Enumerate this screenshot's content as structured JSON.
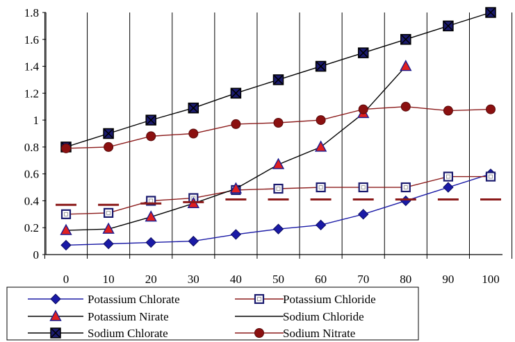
{
  "chart_data": {
    "type": "line",
    "x": [
      0,
      10,
      20,
      30,
      40,
      50,
      60,
      70,
      80,
      90,
      100
    ],
    "ylim": [
      0,
      1.8
    ],
    "yticks": [
      0,
      0.2,
      0.4,
      0.6,
      0.8,
      1,
      1.2,
      1.4,
      1.6,
      1.8
    ],
    "ytick_labels": [
      "0",
      "0.2",
      "0.4",
      "0.6",
      "0.8",
      "1",
      "1.2",
      "1.4",
      "1.6",
      "1.8"
    ],
    "xtick_labels": [
      "0",
      "10",
      "20",
      "30",
      "40",
      "50",
      "60",
      "70",
      "80",
      "90",
      "100"
    ],
    "grid": "vertical",
    "legend_position": "bottom-left",
    "series": [
      {
        "name": "Potassium Chlorate",
        "marker": "diamond",
        "line_color": "#1a1aa6",
        "marker_fill": "#1a1aa6",
        "marker_stroke": "#0b0b60",
        "line_visible": true,
        "values": [
          0.07,
          0.08,
          0.09,
          0.1,
          0.15,
          0.19,
          0.22,
          0.3,
          0.4,
          0.5,
          0.6
        ]
      },
      {
        "name": "Potassium Chloride",
        "marker": "square-hollow",
        "line_color": "#8b1a1a",
        "marker_fill": "#ffffff",
        "marker_stroke": "#1a1a6e",
        "line_visible": true,
        "values": [
          0.3,
          0.31,
          0.4,
          0.42,
          0.48,
          0.49,
          0.5,
          0.5,
          0.5,
          0.58,
          0.58
        ]
      },
      {
        "name": "Potassium Nirate",
        "marker": "triangle",
        "line_color": "#000000",
        "marker_fill": "#e02020",
        "marker_stroke": "#1a1a8e",
        "line_visible": true,
        "values": [
          0.18,
          0.19,
          0.28,
          0.38,
          0.49,
          0.67,
          0.8,
          1.05,
          1.4,
          null,
          null
        ]
      },
      {
        "name": "Sodium Chloride",
        "marker": "dash",
        "line_color": "#000000",
        "marker_fill": "#8b1a1a",
        "marker_stroke": "#8b1a1a",
        "line_visible": false,
        "values": [
          0.37,
          0.37,
          0.38,
          0.39,
          0.41,
          0.41,
          0.41,
          0.41,
          0.41,
          0.41,
          0.41
        ]
      },
      {
        "name": "Sodium Chlorate",
        "marker": "square-x",
        "line_color": "#000000",
        "marker_fill": "#1a1a6e",
        "marker_stroke": "#000000",
        "line_visible": true,
        "values": [
          0.8,
          0.9,
          1.0,
          1.09,
          1.2,
          1.3,
          1.4,
          1.5,
          1.6,
          1.7,
          1.8
        ]
      },
      {
        "name": "Sodium Nitrate",
        "marker": "circle",
        "line_color": "#8b1a1a",
        "marker_fill": "#8b1010",
        "marker_stroke": "#5a0a0a",
        "line_visible": true,
        "values": [
          0.79,
          0.8,
          0.88,
          0.9,
          0.97,
          0.98,
          1.0,
          1.08,
          1.1,
          1.07,
          1.08
        ]
      }
    ]
  }
}
